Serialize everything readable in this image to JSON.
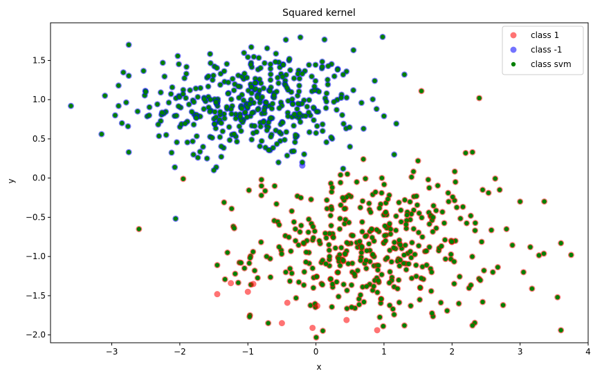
{
  "chart_data": {
    "type": "scatter",
    "title": "Squared kernel",
    "xlabel": "x",
    "ylabel": "y",
    "xlim": [
      -3.9,
      4.0
    ],
    "ylim": [
      -2.1,
      1.98
    ],
    "xticks": [
      -3,
      -2,
      -1,
      0,
      1,
      2,
      3,
      4
    ],
    "yticks": [
      -2.0,
      -1.5,
      -1.0,
      -0.5,
      0.0,
      0.5,
      1.0,
      1.5
    ],
    "grid": false,
    "legend": "top-right",
    "legend_entries": [
      "class 1",
      "class -1",
      "class svm"
    ],
    "colors": {
      "class_1": "#ff0000",
      "class_neg1": "#0000ff",
      "class_svm": "#008000"
    },
    "clusters": [
      {
        "series": "class -1",
        "center": [
          -0.9,
          0.95
        ],
        "spread": [
          0.75,
          0.35
        ],
        "count": 380,
        "also_svm": true
      },
      {
        "series": "class 1",
        "center": [
          0.8,
          -0.9
        ],
        "spread": [
          0.85,
          0.45
        ],
        "count": 380,
        "also_svm": true
      }
    ],
    "series": [
      {
        "name": "class 1",
        "points": [
          [
            -1.45,
            -1.48
          ],
          [
            -1.25,
            -1.34
          ],
          [
            -1.0,
            -1.45
          ],
          [
            -0.92,
            -1.35
          ],
          [
            -0.5,
            -1.85
          ],
          [
            -0.42,
            -1.59
          ],
          [
            -0.05,
            -1.91
          ],
          [
            0.02,
            -1.63
          ],
          [
            0.45,
            -1.81
          ],
          [
            0.9,
            -1.94
          ]
        ]
      },
      {
        "name": "class -1",
        "points": [
          [
            -0.2,
            0.16
          ]
        ]
      },
      {
        "name": "class svm",
        "points": [
          [
            -3.6,
            0.92
          ],
          [
            -3.15,
            0.56
          ],
          [
            -3.1,
            1.05
          ],
          [
            -2.75,
            1.7
          ],
          [
            -2.75,
            0.33
          ],
          [
            -2.6,
            -0.65
          ],
          [
            -2.25,
            1.47
          ],
          [
            -1.95,
            -0.01
          ],
          [
            -1.35,
            -0.31
          ],
          [
            -1.2,
            -0.64
          ],
          [
            -0.95,
            1.67
          ],
          [
            -0.8,
            -0.02
          ],
          [
            -0.2,
            1.33
          ],
          [
            0.4,
            1.32
          ],
          [
            0.98,
            1.8
          ],
          [
            1.0,
            0.79
          ],
          [
            1.3,
            1.32
          ],
          [
            1.55,
            1.11
          ],
          [
            2.4,
            1.02
          ],
          [
            2.2,
            0.32
          ],
          [
            2.3,
            0.33
          ],
          [
            2.45,
            -0.15
          ],
          [
            2.7,
            -0.15
          ],
          [
            3.0,
            -0.3
          ],
          [
            3.15,
            -0.88
          ],
          [
            3.05,
            -1.2
          ],
          [
            3.6,
            -0.83
          ],
          [
            3.75,
            -0.98
          ],
          [
            3.55,
            -1.52
          ],
          [
            3.6,
            -1.94
          ],
          [
            2.3,
            -1.88
          ],
          [
            1.3,
            -1.88
          ],
          [
            1.15,
            0.3
          ],
          [
            1.5,
            0.22
          ],
          [
            -1.45,
            -1.11
          ],
          [
            -1.05,
            -1.15
          ],
          [
            -0.9,
            -1.18
          ],
          [
            0.2,
            -1.0
          ],
          [
            0.6,
            -0.05
          ],
          [
            0.85,
            -1.38
          ],
          [
            1.2,
            -1.41
          ],
          [
            1.7,
            -1.2
          ],
          [
            -0.8,
            -0.1
          ],
          [
            -0.58,
            -0.33
          ],
          [
            -0.3,
            -0.8
          ],
          [
            0.05,
            -0.8
          ],
          [
            2.45,
            -1.58
          ],
          [
            2.75,
            -1.62
          ],
          [
            2.1,
            -1.6
          ],
          [
            2.6,
            -1.2
          ],
          [
            2.8,
            -0.65
          ],
          [
            1.65,
            -0.02
          ],
          [
            1.95,
            -0.3
          ],
          [
            2.05,
            -0.05
          ],
          [
            -1.1,
            -1.08
          ],
          [
            -1.3,
            -0.95
          ],
          [
            -1.55,
            1.0
          ],
          [
            -2.2,
            0.55
          ],
          [
            -2.45,
            0.8
          ],
          [
            -2.5,
            1.1
          ],
          [
            -2.9,
            1.18
          ],
          [
            -2.9,
            0.92
          ],
          [
            -2.95,
            0.8
          ],
          [
            -2.62,
            0.85
          ],
          [
            -2.85,
            0.7
          ],
          [
            -1.6,
            0.25
          ],
          [
            -0.55,
            0.2
          ],
          [
            -0.2,
            0.2
          ],
          [
            0.4,
            0.12
          ],
          [
            0.5,
            0.4
          ],
          [
            0.7,
            0.63
          ],
          [
            0.55,
            1.12
          ],
          [
            -0.3,
            0.55
          ],
          [
            -1.8,
            0.3
          ],
          [
            -1.5,
            0.1
          ],
          [
            -1.1,
            0.6
          ]
        ]
      }
    ]
  }
}
